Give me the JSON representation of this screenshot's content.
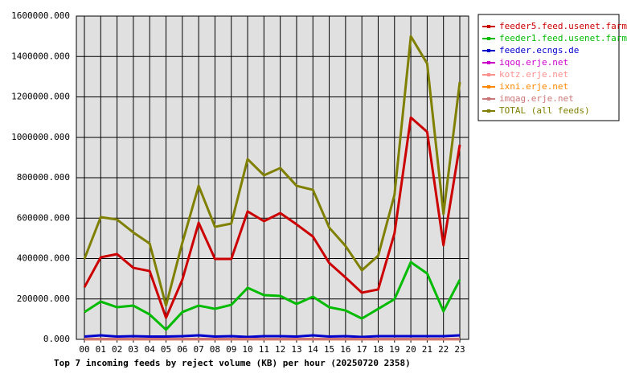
{
  "chart_data": {
    "type": "line",
    "title": "Top 7 incoming feeds by reject volume (KB) per hour (20250720 2358)",
    "categories": [
      "00",
      "01",
      "02",
      "03",
      "04",
      "05",
      "06",
      "07",
      "08",
      "09",
      "10",
      "11",
      "12",
      "13",
      "14",
      "15",
      "16",
      "17",
      "18",
      "19",
      "20",
      "21",
      "22",
      "23"
    ],
    "ylim": [
      0,
      1600000
    ],
    "yticks": [
      {
        "value": 0,
        "label": "0.000"
      },
      {
        "value": 200000,
        "label": "200000.000"
      },
      {
        "value": 400000,
        "label": "400000.000"
      },
      {
        "value": 600000,
        "label": "600000.000"
      },
      {
        "value": 800000,
        "label": "800000.000"
      },
      {
        "value": 1000000,
        "label": "1000000.000"
      },
      {
        "value": 1200000,
        "label": "1200000.000"
      },
      {
        "value": 1400000,
        "label": "1400000.000"
      },
      {
        "value": 1600000,
        "label": "1600000.000"
      }
    ],
    "grid": true,
    "legend": "right",
    "series": [
      {
        "name": "feeder5.feed.usenet.farm",
        "color": "#cc0000",
        "values": [
          258000,
          406000,
          422000,
          354000,
          338000,
          107000,
          295000,
          577000,
          398000,
          398000,
          633000,
          585000,
          625000,
          569000,
          509000,
          378000,
          306000,
          231000,
          247000,
          525000,
          1098000,
          1027000,
          466000,
          963000
        ]
      },
      {
        "name": "feeder1.feed.usenet.farm",
        "color": "#00bb00",
        "values": [
          135000,
          187000,
          159000,
          167000,
          123000,
          48000,
          135000,
          167000,
          151000,
          171000,
          255000,
          219000,
          215000,
          175000,
          211000,
          159000,
          143000,
          103000,
          151000,
          199000,
          382000,
          326000,
          139000,
          295000
        ]
      },
      {
        "name": "feeder.ecngs.de",
        "color": "#0000cc",
        "values": [
          14000,
          20000,
          14000,
          16000,
          14000,
          14000,
          16000,
          20000,
          14000,
          16000,
          12000,
          16000,
          16000,
          14000,
          20000,
          14000,
          16000,
          12000,
          16000,
          16000,
          16000,
          16000,
          16000,
          20000
        ]
      },
      {
        "name": "iqoq.erje.net",
        "color": "#cc00cc",
        "values": [
          2000,
          2000,
          2000,
          2000,
          2000,
          2000,
          2000,
          2000,
          2000,
          2000,
          2000,
          2000,
          2000,
          2000,
          2000,
          2000,
          2000,
          2000,
          2000,
          2000,
          2000,
          2000,
          2000,
          2000
        ]
      },
      {
        "name": "kotz.erje.net",
        "color": "#ff9090",
        "values": [
          1000,
          1000,
          1000,
          1000,
          1000,
          1000,
          1000,
          1000,
          1000,
          1000,
          1000,
          1000,
          1000,
          1000,
          1000,
          1000,
          1000,
          1000,
          1000,
          1000,
          1000,
          1000,
          1000,
          1000
        ]
      },
      {
        "name": "ixni.erje.net",
        "color": "#ff8800",
        "values": [
          1000,
          1000,
          1000,
          1000,
          1000,
          1000,
          1000,
          1000,
          1000,
          1000,
          1000,
          1000,
          1000,
          1000,
          1000,
          1000,
          1000,
          1000,
          1000,
          1000,
          1000,
          1000,
          1000,
          1000
        ]
      },
      {
        "name": "imqag.erje.net",
        "color": "#cc7777",
        "values": [
          1000,
          1000,
          1000,
          1000,
          1000,
          1000,
          1000,
          1000,
          1000,
          1000,
          1000,
          1000,
          1000,
          1000,
          1000,
          1000,
          1000,
          1000,
          1000,
          1000,
          1000,
          1000,
          1000,
          1000
        ]
      },
      {
        "name": "TOTAL (all feeds)",
        "color": "#808000",
        "values": [
          398000,
          605000,
          593000,
          529000,
          474000,
          167000,
          478000,
          760000,
          557000,
          573000,
          892000,
          812000,
          848000,
          760000,
          740000,
          553000,
          462000,
          342000,
          414000,
          716000,
          1500000,
          1365000,
          621000,
          1274000
        ]
      }
    ]
  }
}
